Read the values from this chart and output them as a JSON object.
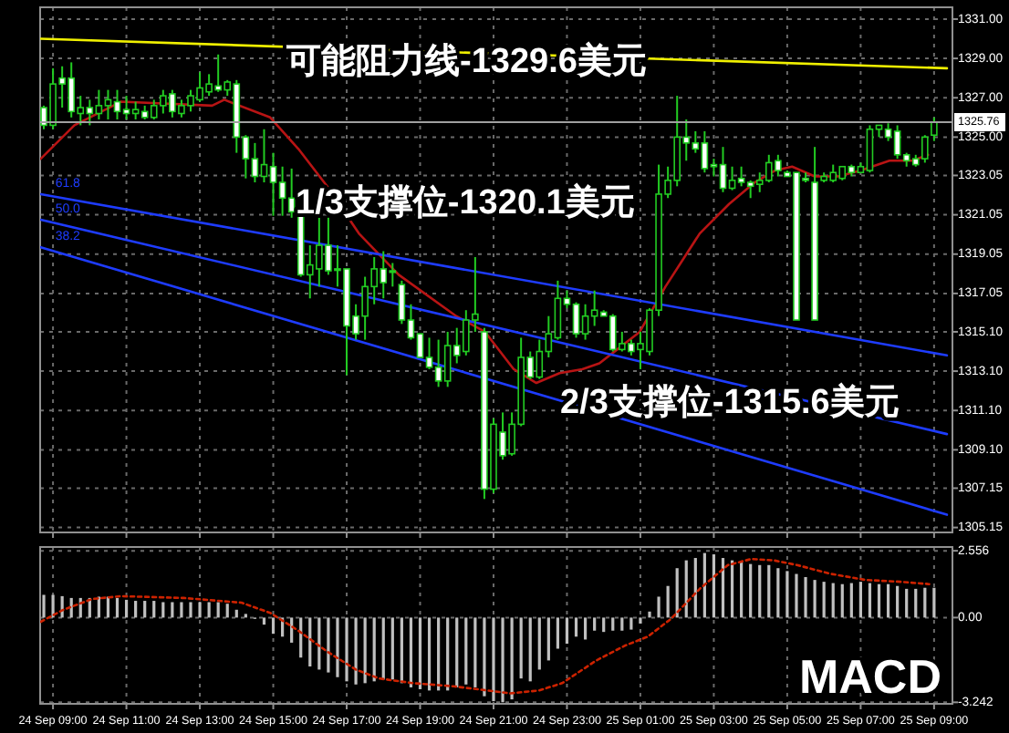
{
  "chart_data": [
    {
      "type": "candlestick",
      "color": "#22cc22",
      "x": [
        "--09-24T08:45",
        "--09-24T09:00",
        "--09-24T09:15",
        "--09-24T09:30",
        "--09-24T09:45",
        "--09-24T10:00",
        "--09-24T10:15",
        "--09-24T10:30",
        "--09-24T10:45",
        "--09-24T11:00",
        "--09-24T11:15",
        "--09-24T11:30",
        "--09-24T11:45",
        "--09-24T12:00",
        "--09-24T12:15",
        "--09-24T12:30",
        "--09-24T12:45",
        "--09-24T13:00",
        "--09-24T13:15",
        "--09-24T13:30",
        "--09-24T13:45",
        "--09-24T14:00",
        "--09-24T14:15",
        "--09-24T14:30",
        "--09-24T14:45",
        "--09-24T15:00",
        "--09-24T15:15",
        "--09-24T15:30",
        "--09-24T15:45",
        "--09-24T16:00",
        "--09-24T16:15",
        "--09-24T16:30",
        "--09-24T16:45",
        "--09-24T17:00",
        "--09-24T17:15",
        "--09-24T17:30",
        "--09-24T17:45",
        "--09-24T18:00",
        "--09-24T18:15",
        "--09-24T18:30",
        "--09-24T18:45",
        "--09-24T19:00",
        "--09-24T19:15",
        "--09-24T19:30",
        "--09-24T19:45",
        "--09-24T20:00",
        "--09-24T20:15",
        "--09-24T20:30",
        "--09-24T20:45",
        "--09-24T21:00",
        "--09-24T21:15",
        "--09-24T21:30",
        "--09-24T21:45",
        "--09-24T22:00",
        "--09-24T22:15",
        "--09-24T22:30",
        "--09-24T22:45",
        "--09-24T23:00",
        "--09-24T23:15",
        "--09-24T23:30",
        "--09-24T23:45",
        "--09-25T00:00",
        "--09-25T00:15",
        "--09-25T00:30",
        "--09-25T00:45",
        "--09-25T01:00",
        "--09-25T01:15",
        "--09-25T01:30",
        "--09-25T01:45",
        "--09-25T02:00",
        "--09-25T02:15",
        "--09-25T02:30",
        "--09-25T02:45",
        "--09-25T03:00",
        "--09-25T03:15",
        "--09-25T03:30",
        "--09-25T03:45",
        "--09-25T04:00",
        "--09-25T04:15",
        "--09-25T04:30",
        "--09-25T04:45",
        "--09-25T05:00",
        "--09-25T05:15",
        "--09-25T05:30",
        "--09-25T05:45",
        "--09-25T06:00",
        "--09-25T06:15",
        "--09-25T06:30",
        "--09-25T06:45",
        "--09-25T07:00",
        "--09-25T07:15",
        "--09-25T07:30",
        "--09-25T07:45",
        "--09-25T08:00",
        "--09-25T08:15",
        "--09-25T08:30",
        "--09-25T08:45",
        "--09-25T09:00"
      ],
      "ohlc": [
        [
          1326.5,
          1326.6,
          1325.4,
          1325.6
        ],
        [
          1325.6,
          1328.5,
          1325.4,
          1327.7
        ],
        [
          1328.0,
          1328.6,
          1326.5,
          1327.7
        ],
        [
          1328.0,
          1328.8,
          1326.0,
          1326.3
        ],
        [
          1326.2,
          1327.1,
          1325.6,
          1326.5
        ],
        [
          1326.5,
          1326.9,
          1325.6,
          1326.2
        ],
        [
          1326.2,
          1327.4,
          1325.9,
          1326.6
        ],
        [
          1326.6,
          1327.4,
          1325.9,
          1326.9
        ],
        [
          1326.8,
          1327.4,
          1325.9,
          1326.3
        ],
        [
          1326.4,
          1327.1,
          1325.9,
          1326.2
        ],
        [
          1326.2,
          1326.8,
          1325.9,
          1326.4
        ],
        [
          1326.3,
          1326.6,
          1325.9,
          1326.0
        ],
        [
          1326.0,
          1326.9,
          1325.9,
          1326.6
        ],
        [
          1326.6,
          1327.4,
          1326.2,
          1327.1
        ],
        [
          1327.2,
          1327.4,
          1326.0,
          1326.3
        ],
        [
          1326.2,
          1326.9,
          1326.0,
          1326.6
        ],
        [
          1326.6,
          1327.4,
          1326.3,
          1327.1
        ],
        [
          1326.9,
          1328.3,
          1326.8,
          1327.5
        ],
        [
          1327.3,
          1328.2,
          1327.1,
          1327.7
        ],
        [
          1327.6,
          1329.2,
          1327.3,
          1327.4
        ],
        [
          1327.4,
          1327.9,
          1327.1,
          1327.8
        ],
        [
          1327.7,
          1327.9,
          1324.2,
          1325.0
        ],
        [
          1325.0,
          1325.1,
          1322.9,
          1323.9
        ],
        [
          1323.9,
          1324.7,
          1322.7,
          1323.0
        ],
        [
          1323.0,
          1325.4,
          1322.7,
          1323.6
        ],
        [
          1323.5,
          1324.2,
          1321.0,
          1322.7
        ],
        [
          1322.7,
          1323.5,
          1321.0,
          1321.9
        ],
        [
          1321.9,
          1323.4,
          1320.9,
          1321.2
        ],
        [
          1321.2,
          1321.2,
          1317.9,
          1318.0
        ],
        [
          1318.0,
          1319.5,
          1316.8,
          1318.5
        ],
        [
          1318.3,
          1320.9,
          1317.4,
          1319.5
        ],
        [
          1319.5,
          1320.9,
          1318.0,
          1318.2
        ],
        [
          1318.3,
          1319.5,
          1317.4,
          1318.3
        ],
        [
          1318.3,
          1318.3,
          1312.9,
          1315.4
        ],
        [
          1315.9,
          1316.5,
          1314.7,
          1315.0
        ],
        [
          1315.9,
          1317.9,
          1314.7,
          1317.4
        ],
        [
          1317.4,
          1318.9,
          1316.5,
          1318.3
        ],
        [
          1318.3,
          1319.2,
          1316.8,
          1317.6
        ],
        [
          1318.2,
          1318.6,
          1317.4,
          1318.2
        ],
        [
          1317.5,
          1317.7,
          1315.5,
          1315.7
        ],
        [
          1315.7,
          1316.5,
          1314.7,
          1314.8
        ],
        [
          1315.0,
          1315.0,
          1313.8,
          1313.8
        ],
        [
          1313.8,
          1314.8,
          1313.2,
          1313.3
        ],
        [
          1313.3,
          1314.7,
          1312.3,
          1312.6
        ],
        [
          1312.6,
          1315.1,
          1312.3,
          1314.4
        ],
        [
          1314.4,
          1315.3,
          1313.5,
          1313.9
        ],
        [
          1314.1,
          1316.2,
          1313.9,
          1315.7
        ],
        [
          1315.7,
          1318.9,
          1315.1,
          1316.0
        ],
        [
          1315.1,
          1315.3,
          1306.6,
          1307.1
        ],
        [
          1307.1,
          1310.7,
          1306.9,
          1310.4
        ],
        [
          1310.0,
          1311.0,
          1308.6,
          1308.8
        ],
        [
          1308.9,
          1311.0,
          1308.8,
          1310.4
        ],
        [
          1310.4,
          1314.8,
          1310.3,
          1313.8
        ],
        [
          1313.8,
          1314.1,
          1312.7,
          1312.8
        ],
        [
          1312.8,
          1314.7,
          1312.7,
          1314.1
        ],
        [
          1314.1,
          1315.9,
          1313.8,
          1315.0
        ],
        [
          1314.8,
          1317.7,
          1314.7,
          1316.8
        ],
        [
          1316.8,
          1317.2,
          1316.3,
          1316.5
        ],
        [
          1316.5,
          1316.6,
          1314.8,
          1315.0
        ],
        [
          1315.0,
          1316.5,
          1314.7,
          1315.9
        ],
        [
          1315.9,
          1317.2,
          1315.4,
          1316.2
        ],
        [
          1316.1,
          1316.2,
          1315.9,
          1315.9
        ],
        [
          1315.9,
          1316.0,
          1314.1,
          1314.2
        ],
        [
          1314.2,
          1315.1,
          1314.1,
          1314.5
        ],
        [
          1314.5,
          1314.7,
          1313.9,
          1314.1
        ],
        [
          1314.2,
          1315.1,
          1313.2,
          1314.5
        ],
        [
          1314.1,
          1316.3,
          1313.9,
          1316.2
        ],
        [
          1316.2,
          1323.6,
          1315.9,
          1322.1
        ],
        [
          1322.1,
          1323.5,
          1321.9,
          1322.8
        ],
        [
          1322.8,
          1327.1,
          1322.5,
          1325.0
        ],
        [
          1325.0,
          1325.9,
          1323.8,
          1324.7
        ],
        [
          1324.7,
          1325.3,
          1324.2,
          1324.4
        ],
        [
          1324.7,
          1325.3,
          1323.2,
          1323.4
        ],
        [
          1323.6,
          1323.9,
          1323.0,
          1323.5
        ],
        [
          1323.6,
          1324.5,
          1322.2,
          1322.4
        ],
        [
          1322.4,
          1323.5,
          1322.3,
          1322.8
        ],
        [
          1322.9,
          1323.5,
          1322.5,
          1322.7
        ],
        [
          1322.7,
          1322.8,
          1321.9,
          1322.5
        ],
        [
          1322.6,
          1323.2,
          1322.2,
          1322.8
        ],
        [
          1322.8,
          1324.1,
          1322.7,
          1323.7
        ],
        [
          1323.8,
          1324.1,
          1323.0,
          1323.3
        ],
        [
          1323.2,
          1323.3,
          1323.0,
          1323.0
        ],
        [
          1323.2,
          1323.2,
          1315.7,
          1315.7
        ],
        [
          1322.9,
          1323.2,
          1322.7,
          1322.8
        ],
        [
          1322.7,
          1324.5,
          1315.7,
          1315.7
        ],
        [
          1322.8,
          1323.2,
          1322.7,
          1323.0
        ],
        [
          1322.8,
          1323.6,
          1322.7,
          1323.2
        ],
        [
          1322.9,
          1323.5,
          1322.8,
          1323.5
        ],
        [
          1323.5,
          1323.6,
          1323.0,
          1323.2
        ],
        [
          1323.2,
          1323.7,
          1323.2,
          1323.5
        ],
        [
          1323.3,
          1325.6,
          1323.2,
          1325.4
        ],
        [
          1325.4,
          1325.6,
          1325.0,
          1325.6
        ],
        [
          1325.4,
          1325.7,
          1324.8,
          1325.0
        ],
        [
          1325.3,
          1325.6,
          1323.9,
          1324.1
        ],
        [
          1324.1,
          1324.2,
          1323.5,
          1323.8
        ],
        [
          1323.9,
          1324.1,
          1323.5,
          1323.6
        ],
        [
          1323.9,
          1325.1,
          1323.7,
          1325.0
        ],
        [
          1325.1,
          1326.0,
          1324.8,
          1325.76
        ]
      ],
      "series": [
        {
          "type": "line",
          "color": "#b81414",
          "x": [
            "--09-24T08:40",
            "--09-24T09:35",
            "--09-24T10:51",
            "--09-24T13:20",
            "--09-24T13:40",
            "--09-24T14:55",
            "--09-24T15:41",
            "--09-24T16:28",
            "--09-24T17:20",
            "--09-24T18:25",
            "--09-24T19:59",
            "--09-24T20:46",
            "--09-24T21:33",
            "--09-24T22:10",
            "--09-24T22:48",
            "--09-24T23:25",
            "--09-24T23:53",
            "--09-25T00:22",
            "--09-25T00:59",
            "--09-25T01:41",
            "--09-25T02:37",
            "--09-25T03:25",
            "--09-25T04:07",
            "--09-25T04:40",
            "--09-25T05:08",
            "--09-25T05:45",
            "--09-25T06:23",
            "--09-25T07:00",
            "--09-25T07:47",
            "--09-25T08:25",
            "--09-25T08:50"
          ],
          "values": [
            1323.9,
            1325.6,
            1326.8,
            1326.6,
            1326.9,
            1326.0,
            1324.4,
            1322.5,
            1320.1,
            1318.0,
            1315.9,
            1315.1,
            1313.2,
            1312.5,
            1313.0,
            1313.2,
            1313.5,
            1314.2,
            1315.1,
            1317.4,
            1320.1,
            1321.6,
            1322.7,
            1323.3,
            1323.5,
            1323.0,
            1323.0,
            1323.3,
            1323.8,
            1323.8,
            1324.1
          ]
        },
        {
          "type": "line",
          "name": "61.8",
          "color": "#1e3cff",
          "x": [
            "--09-24T08:40",
            "--09-25T09:21"
          ],
          "values": [
            1322.1,
            1313.9
          ]
        },
        {
          "type": "line",
          "name": "50.0",
          "color": "#1e3cff",
          "x": [
            "--09-24T08:40",
            "--09-25T09:21"
          ],
          "values": [
            1320.8,
            1309.9
          ]
        },
        {
          "type": "line",
          "name": "38.2",
          "color": "#1e3cff",
          "x": [
            "--09-24T08:40",
            "--09-25T09:21"
          ],
          "values": [
            1319.4,
            1305.8
          ]
        },
        {
          "type": "line",
          "color": "#f0f000",
          "x": [
            "--09-24T08:40",
            "--09-25T09:21"
          ],
          "values": [
            1330.0,
            1328.5
          ]
        }
      ],
      "ref_lines": [
        {
          "axis": "y",
          "value": 1325.76,
          "label": "1325.76",
          "color": "#a0a0a0"
        }
      ],
      "annotations": [
        "可能阻力线-1329.6美元",
        "1/3支撑位-1320.1美元",
        "2/3支撑位-1315.6美元"
      ],
      "xlim": [
        "--09-24T08:39",
        "--09-25T09:30"
      ],
      "ylim": [
        1304.9,
        1331.6
      ],
      "xticks": [
        {
          "value": "--09-24T09:00",
          "label": null
        },
        {
          "value": "--09-24T11:00",
          "label": null
        },
        {
          "value": "--09-24T13:00",
          "label": null
        },
        {
          "value": "--09-24T15:00",
          "label": null
        },
        {
          "value": "--09-24T17:00",
          "label": null
        },
        {
          "value": "--09-24T19:00",
          "label": null
        },
        {
          "value": "--09-24T21:00",
          "label": null
        },
        {
          "value": "--09-24T23:00",
          "label": null
        },
        {
          "value": "--09-25T01:00",
          "label": null
        },
        {
          "value": "--09-25T03:00",
          "label": null
        },
        {
          "value": "--09-25T05:00",
          "label": null
        },
        {
          "value": "--09-25T07:00",
          "label": null
        },
        {
          "value": "--09-25T09:00",
          "label": null
        }
      ],
      "yticks": [
        {
          "value": 1331,
          "label": "1331.00"
        },
        {
          "value": 1329,
          "label": "1329.00"
        },
        {
          "value": 1327,
          "label": "1327.00"
        },
        {
          "value": 1325,
          "label": "1325.00"
        },
        1323.05,
        1321.05,
        1319.05,
        1317.05,
        {
          "value": 1315.1,
          "label": "1315.10"
        },
        {
          "value": 1313.1,
          "label": "1313.10"
        },
        {
          "value": 1311.1,
          "label": "1311.10"
        },
        {
          "value": 1309.1,
          "label": "1309.10"
        },
        1307.15,
        1305.15
      ],
      "tick_labels": "y",
      "grid": true
    },
    {
      "type": "bar",
      "series": [
        {
          "type": "bar",
          "color": "#c0c0c0",
          "x": [
            "--09-24T08:45",
            "--09-24T09:00",
            "--09-24T09:15",
            "--09-24T09:30",
            "--09-24T09:45",
            "--09-24T10:00",
            "--09-24T10:15",
            "--09-24T10:30",
            "--09-24T10:45",
            "--09-24T11:00",
            "--09-24T11:15",
            "--09-24T11:30",
            "--09-24T11:45",
            "--09-24T12:00",
            "--09-24T12:15",
            "--09-24T12:30",
            "--09-24T12:45",
            "--09-24T13:00",
            "--09-24T13:15",
            "--09-24T13:30",
            "--09-24T13:45",
            "--09-24T14:00",
            "--09-24T14:15",
            "--09-24T14:30",
            "--09-24T14:45",
            "--09-24T15:00",
            "--09-24T15:15",
            "--09-24T15:30",
            "--09-24T15:45",
            "--09-24T16:00",
            "--09-24T16:15",
            "--09-24T16:30",
            "--09-24T16:45",
            "--09-24T17:00",
            "--09-24T17:15",
            "--09-24T17:30",
            "--09-24T17:45",
            "--09-24T18:00",
            "--09-24T18:15",
            "--09-24T18:30",
            "--09-24T18:45",
            "--09-24T19:00",
            "--09-24T19:15",
            "--09-24T19:30",
            "--09-24T19:45",
            "--09-24T20:00",
            "--09-24T20:15",
            "--09-24T20:30",
            "--09-24T20:45",
            "--09-24T21:00",
            "--09-24T21:15",
            "--09-24T21:30",
            "--09-24T21:45",
            "--09-24T22:00",
            "--09-24T22:15",
            "--09-24T22:30",
            "--09-24T22:45",
            "--09-24T23:00",
            "--09-24T23:15",
            "--09-24T23:30",
            "--09-24T23:45",
            "--09-25T00:00",
            "--09-25T00:15",
            "--09-25T00:30",
            "--09-25T00:45",
            "--09-25T01:00",
            "--09-25T01:15",
            "--09-25T01:30",
            "--09-25T01:45",
            "--09-25T02:00",
            "--09-25T02:15",
            "--09-25T02:30",
            "--09-25T02:45",
            "--09-25T03:00",
            "--09-25T03:15",
            "--09-25T03:30",
            "--09-25T03:45",
            "--09-25T04:00",
            "--09-25T04:15",
            "--09-25T04:30",
            "--09-25T04:45",
            "--09-25T05:00",
            "--09-25T05:15",
            "--09-25T05:30",
            "--09-25T05:45",
            "--09-25T06:00",
            "--09-25T06:15",
            "--09-25T06:30",
            "--09-25T06:45",
            "--09-25T07:00",
            "--09-25T07:15",
            "--09-25T07:30",
            "--09-25T07:45",
            "--09-25T08:00",
            "--09-25T08:15",
            "--09-25T08:30",
            "--09-25T08:45",
            "--09-25T09:00"
          ],
          "values": [
            0.87,
            0.87,
            0.82,
            0.75,
            0.75,
            0.75,
            0.8,
            0.8,
            0.75,
            0.68,
            0.64,
            0.64,
            0.64,
            0.59,
            0.59,
            0.59,
            0.59,
            0.59,
            0.59,
            0.59,
            0.53,
            0.3,
            0.14,
            -0.05,
            -0.27,
            -0.62,
            -0.73,
            -0.96,
            -1.53,
            -1.87,
            -1.99,
            -2.1,
            -2.28,
            -2.44,
            -2.56,
            -2.51,
            -2.44,
            -2.37,
            -2.37,
            -2.51,
            -2.67,
            -2.74,
            -2.79,
            -2.79,
            -2.79,
            -2.67,
            -2.56,
            -2.67,
            -3.01,
            -3.2,
            -3.24,
            -3.13,
            -2.33,
            -2.44,
            -1.99,
            -1.64,
            -1.19,
            -1.0,
            -0.73,
            -0.84,
            -0.5,
            -0.55,
            -0.5,
            -0.5,
            -0.46,
            -0.23,
            0.23,
            0.8,
            1.21,
            1.89,
            2.19,
            2.28,
            2.47,
            2.42,
            2.28,
            2.19,
            2.12,
            2.05,
            2.01,
            2.01,
            1.89,
            1.78,
            1.67,
            1.55,
            1.44,
            1.37,
            1.32,
            1.28,
            1.32,
            1.37,
            1.32,
            1.28,
            1.28,
            1.21,
            1.1,
            1.1,
            1.14,
            1.14
          ]
        },
        {
          "type": "line",
          "color": "#cc2200",
          "line_style": "dotted",
          "x": [
            "--09-24T08:40",
            "--09-24T09:17",
            "--09-24T10:04",
            "--09-24T10:51",
            "--09-24T12:34",
            "--09-24T14:08",
            "--09-24T14:55",
            "--09-24T15:41",
            "--09-24T16:28",
            "--09-24T17:15",
            "--09-24T17:53",
            "--09-24T18:49",
            "--09-24T19:55",
            "--09-24T20:50",
            "--09-24T21:27",
            "--09-24T22:14",
            "--09-24T22:52",
            "--09-24T23:48",
            "--09-25T00:35",
            "--09-25T01:12",
            "--09-25T01:50",
            "--09-25T02:37",
            "--09-25T03:23",
            "--09-25T04:01",
            "--09-25T04:38",
            "--09-25T05:16",
            "--09-25T06:12",
            "--09-25T07:08",
            "--09-25T08:05",
            "--09-25T08:52"
          ],
          "values": [
            -0.16,
            0.3,
            0.71,
            0.82,
            0.75,
            0.57,
            0.18,
            -0.5,
            -1.3,
            -1.99,
            -2.33,
            -2.51,
            -2.63,
            -2.79,
            -2.9,
            -2.79,
            -2.51,
            -1.64,
            -1.07,
            -0.73,
            -0.05,
            1.1,
            2.01,
            2.24,
            2.19,
            2.01,
            1.67,
            1.44,
            1.37,
            1.28
          ]
        }
      ],
      "annotations": [
        "MACD"
      ],
      "xlim": [
        "--09-24T08:39",
        "--09-25T09:30"
      ],
      "ylim": [
        -3.3,
        2.7
      ],
      "xticks": [
        {
          "value": "--09-24T09:00",
          "label": "24 Sep 09:00"
        },
        {
          "value": "--09-24T11:00",
          "label": "24 Sep 11:00"
        },
        {
          "value": "--09-24T13:00",
          "label": "24 Sep 13:00"
        },
        {
          "value": "--09-24T15:00",
          "label": "24 Sep 15:00"
        },
        {
          "value": "--09-24T17:00",
          "label": "24 Sep 17:00"
        },
        {
          "value": "--09-24T19:00",
          "label": "24 Sep 19:00"
        },
        {
          "value": "--09-24T21:00",
          "label": "24 Sep 21:00"
        },
        {
          "value": "--09-24T23:00",
          "label": "24 Sep 23:00"
        },
        {
          "value": "--09-25T01:00",
          "label": "25 Sep 01:00"
        },
        {
          "value": "--09-25T03:00",
          "label": "25 Sep 03:00"
        },
        {
          "value": "--09-25T05:00",
          "label": "25 Sep 05:00"
        },
        {
          "value": "--09-25T07:00",
          "label": "25 Sep 07:00"
        },
        {
          "value": "--09-25T09:00",
          "label": "25 Sep 09:00"
        }
      ],
      "yticks": [
        2.556,
        {
          "value": 0,
          "label": "0.00"
        },
        -3.242
      ],
      "grid": true
    }
  ]
}
